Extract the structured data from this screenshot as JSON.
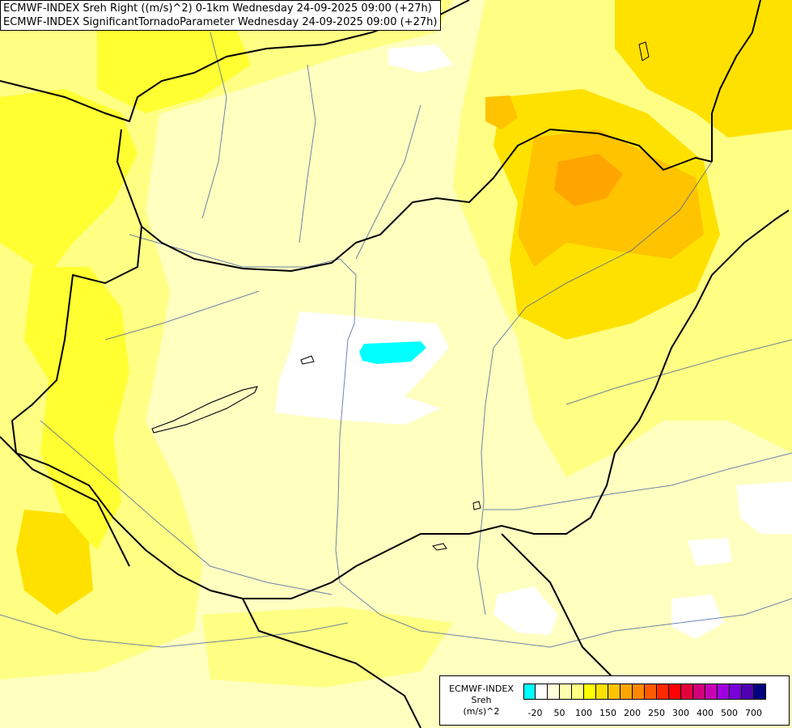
{
  "title": {
    "line1": "ECMWF-INDEX Sreh Right ((m/s)^2) 0-1km Wednesday 24-09-2025 09:00 (+27h)",
    "line2": "ECMWF-INDEX SignificantTornadoParameter Wednesday 24-09-2025 09:00 (+27h)"
  },
  "legend": {
    "name": "ECMWF-INDEX",
    "variable": "Sreh",
    "unit": "(m/s)^2",
    "colors": [
      "#00ffff",
      "#ffffff",
      "#ffffd9",
      "#ffffaf",
      "#ffff84",
      "#ffff00",
      "#ffe100",
      "#ffc300",
      "#ffa500",
      "#ff8800",
      "#ff5a00",
      "#ff2a00",
      "#ff0000",
      "#e3003c",
      "#d10078",
      "#c800b4",
      "#a000e1",
      "#7800d8",
      "#4f00b0",
      "#000080"
    ],
    "tick_labels": [
      "-20",
      "50",
      "100",
      "150",
      "200",
      "250",
      "300",
      "400",
      "500",
      "700"
    ]
  },
  "colors": {
    "cyan": "#00ffff",
    "white": "#ffffff",
    "pale": "#ffffc0",
    "light_yellow": "#ffff96",
    "yellow": "#ffff32",
    "gold": "#ffe100",
    "amber": "#ffc300",
    "orange": "#ffa500"
  }
}
